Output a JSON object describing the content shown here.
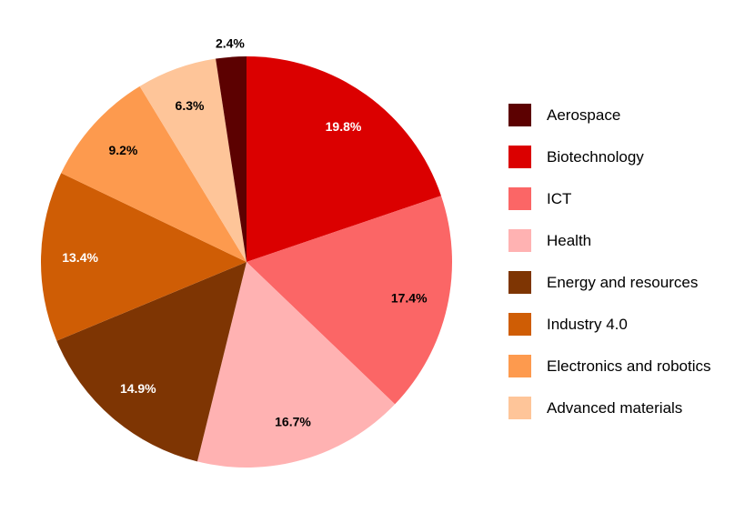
{
  "page": {
    "background": "#ffffff"
  },
  "chart_data": {
    "type": "pie",
    "title": "",
    "legend_position": "right",
    "start_angle_deg": 90,
    "direction": "clockwise",
    "sort": "descending",
    "value_unit": "%",
    "slices": [
      {
        "label": "Aerospace",
        "value": 2.4,
        "pct_label": "2.4%",
        "color": "#5C0101",
        "label_color": "#000000",
        "label_placement": "outside"
      },
      {
        "label": "Biotechnology",
        "value": 19.8,
        "pct_label": "19.8%",
        "color": "#DB0000",
        "label_color": "#ffffff",
        "label_placement": "inside"
      },
      {
        "label": "ICT",
        "value": 17.4,
        "pct_label": "17.4%",
        "color": "#FB6666",
        "label_color": "#000000",
        "label_placement": "inside"
      },
      {
        "label": "Health",
        "value": 16.7,
        "pct_label": "16.7%",
        "color": "#FFB2B2",
        "label_color": "#000000",
        "label_placement": "inside"
      },
      {
        "label": "Energy and resources",
        "value": 14.9,
        "pct_label": "14.9%",
        "color": "#7E3503",
        "label_color": "#ffffff",
        "label_placement": "inside"
      },
      {
        "label": "Industry 4.0",
        "value": 13.4,
        "pct_label": "13.4%",
        "color": "#CF5D05",
        "label_color": "#ffffff",
        "label_placement": "inside"
      },
      {
        "label": "Electronics and robotics",
        "value": 9.2,
        "pct_label": "9.2%",
        "color": "#FD9A4E",
        "label_color": "#000000",
        "label_placement": "inside"
      },
      {
        "label": "Advanced materials",
        "value": 6.3,
        "pct_label": "6.3%",
        "color": "#FEC599",
        "label_color": "#000000",
        "label_placement": "inside"
      }
    ]
  }
}
